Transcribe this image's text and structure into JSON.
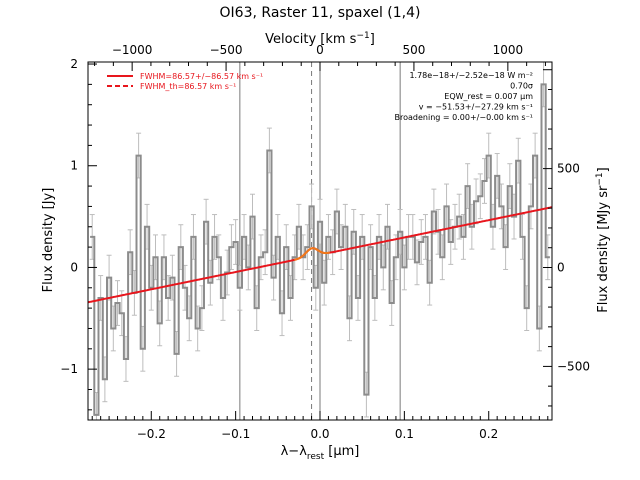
{
  "chart_data": {
    "type": "line",
    "title": "OI63, Raster 11, spaxel (1,4)",
    "xlabel": "λ−λ_rest [μm]",
    "xlabel_main": "λ−λ",
    "xlabel_sub": "rest",
    "xlabel_unit": " [μm]",
    "ylabel": "Flux density [Jy]",
    "top_xlabel": "Velocity [km s⁻¹]",
    "top_xlabel_main": "Velocity [km s",
    "top_xlabel_sup": "−1",
    "top_xlabel_end": "]",
    "right_ylabel": "Flux density [MJy sr⁻¹]",
    "right_ylabel_main": "Flux density [MJy sr",
    "right_ylabel_sup": "−1",
    "right_ylabel_end": "]",
    "xlim": [
      -0.275,
      0.275
    ],
    "ylim": [
      -1.5,
      2.02
    ],
    "top_xlim": [
      -1235,
      1235
    ],
    "right_ylim": [
      -771,
      1039
    ],
    "x_ticks": [
      -0.2,
      -0.1,
      0.0,
      0.1,
      0.2
    ],
    "x_tick_labels": [
      "−0.2",
      "−0.1",
      "0.0",
      "0.1",
      "0.2"
    ],
    "y_ticks": [
      -1,
      0,
      1,
      2
    ],
    "y_tick_labels": [
      "−1",
      "0",
      "1",
      "2"
    ],
    "top_ticks": [
      -1000,
      -500,
      0,
      500,
      1000
    ],
    "top_tick_labels": [
      "−1000",
      "−500",
      "0",
      "500",
      "1000"
    ],
    "right_ticks": [
      -500,
      0,
      500
    ],
    "right_tick_labels": [
      "−500",
      "0",
      "500"
    ],
    "vertical_lines_solid": [
      -0.095,
      0.0,
      0.095
    ],
    "vertical_line_dashed": -0.01,
    "legend": [
      {
        "label": "FWHM=86.57+/−86.57 km s⁻¹",
        "style": "solid"
      },
      {
        "label": "FWHM_th=86.57 km s⁻¹",
        "style": "dashed"
      }
    ],
    "annotations": [
      "1.78e−18+/−2.52e−18 W m⁻²",
      "0.70σ",
      "EQW_rest = 0.007 μm",
      "v = −51.53+/−27.29 km s⁻¹",
      "Broadening = 0.00+/−0.00 km s⁻¹"
    ],
    "series": [
      {
        "name": "spectrum",
        "style": "histogram",
        "color": "#8c8c8c",
        "x": [
          -0.27,
          -0.265,
          -0.26,
          -0.255,
          -0.25,
          -0.245,
          -0.24,
          -0.235,
          -0.23,
          -0.225,
          -0.22,
          -0.215,
          -0.21,
          -0.205,
          -0.2,
          -0.195,
          -0.19,
          -0.185,
          -0.18,
          -0.175,
          -0.17,
          -0.165,
          -0.16,
          -0.155,
          -0.15,
          -0.145,
          -0.14,
          -0.135,
          -0.13,
          -0.125,
          -0.12,
          -0.115,
          -0.11,
          -0.105,
          -0.1,
          -0.095,
          -0.09,
          -0.085,
          -0.08,
          -0.075,
          -0.07,
          -0.065,
          -0.06,
          -0.055,
          -0.05,
          -0.045,
          -0.04,
          -0.035,
          -0.03,
          -0.025,
          -0.02,
          -0.015,
          -0.01,
          -0.005,
          0.0,
          0.005,
          0.01,
          0.015,
          0.02,
          0.025,
          0.03,
          0.035,
          0.04,
          0.045,
          0.05,
          0.055,
          0.06,
          0.065,
          0.07,
          0.075,
          0.08,
          0.085,
          0.09,
          0.095,
          0.1,
          0.105,
          0.11,
          0.115,
          0.12,
          0.125,
          0.13,
          0.135,
          0.14,
          0.145,
          0.15,
          0.155,
          0.16,
          0.165,
          0.17,
          0.175,
          0.18,
          0.185,
          0.19,
          0.195,
          0.2,
          0.205,
          0.21,
          0.215,
          0.22,
          0.225,
          0.23,
          0.235,
          0.24,
          0.245,
          0.25,
          0.255,
          0.26,
          0.265,
          0.27
        ],
        "y": [
          0.3,
          -1.45,
          -0.3,
          -1.1,
          -0.1,
          -0.6,
          -0.35,
          -0.45,
          -0.9,
          0.15,
          -0.25,
          1.1,
          -0.8,
          0.4,
          -0.2,
          0.1,
          -0.55,
          0.1,
          -0.3,
          -0.1,
          -0.85,
          0.2,
          -0.2,
          -0.5,
          0.3,
          -0.6,
          -0.4,
          0.45,
          -0.15,
          0.3,
          0.1,
          -0.3,
          -0.05,
          0.2,
          0.25,
          -0.2,
          0.3,
          0.0,
          0.5,
          -0.4,
          0.1,
          0.15,
          1.15,
          -0.1,
          0.3,
          -0.45,
          0.2,
          -0.3,
          0.1,
          0.4,
          0.1,
          0.2,
          0.6,
          -0.2,
          0.45,
          -0.15,
          0.3,
          0.15,
          0.55,
          0.2,
          0.4,
          -0.5,
          0.35,
          -0.3,
          0.3,
          -1.25,
          0.2,
          -0.3,
          0.3,
          0.0,
          0.4,
          -0.35,
          0.1,
          0.35,
          0.0,
          0.3,
          0.3,
          0.05,
          0.25,
          0.3,
          -0.15,
          0.55,
          0.35,
          0.1,
          0.6,
          0.25,
          0.4,
          0.5,
          0.3,
          0.8,
          0.4,
          0.65,
          0.7,
          0.85,
          1.1,
          0.4,
          0.9,
          0.6,
          0.2,
          0.8,
          0.5,
          1.05,
          0.3,
          -0.4,
          0.6,
          1.1,
          -0.6,
          1.8,
          0.1
        ],
        "err": 0.22
      },
      {
        "name": "fit",
        "style": "line",
        "color": "#e8161d",
        "baseline_slope": 1.7,
        "baseline_intercept": 0.125,
        "gauss_center": -0.0095,
        "gauss_amplitude": 0.08,
        "gauss_sigma": 0.007
      }
    ]
  }
}
